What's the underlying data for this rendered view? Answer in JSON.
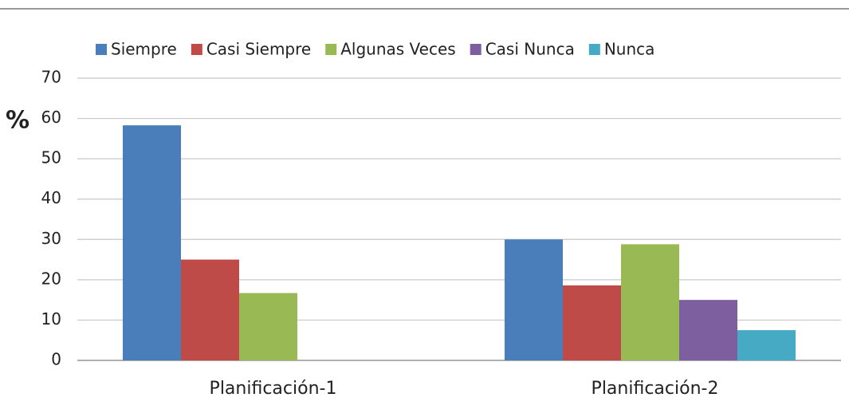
{
  "chart_data": {
    "type": "bar",
    "ylabel": "%",
    "categories": [
      "Planificación-1",
      "Planificación-2"
    ],
    "series": [
      {
        "name": "Siempre",
        "color": "#4a7ebb",
        "values": [
          58.3,
          30
        ]
      },
      {
        "name": "Casi Siempre",
        "color": "#be4b48",
        "values": [
          25,
          18.6
        ]
      },
      {
        "name": "Algunas Veces",
        "color": "#98b954",
        "values": [
          16.7,
          28.8
        ]
      },
      {
        "name": "Casi Nunca",
        "color": "#7d5fa0",
        "values": [
          0,
          15
        ]
      },
      {
        "name": "Nunca",
        "color": "#46aac5",
        "values": [
          0,
          7.5
        ]
      }
    ],
    "ylim": [
      0,
      70
    ],
    "yticks": [
      0,
      10,
      20,
      30,
      40,
      50,
      60,
      70
    ],
    "grid": true,
    "legend": "top"
  }
}
